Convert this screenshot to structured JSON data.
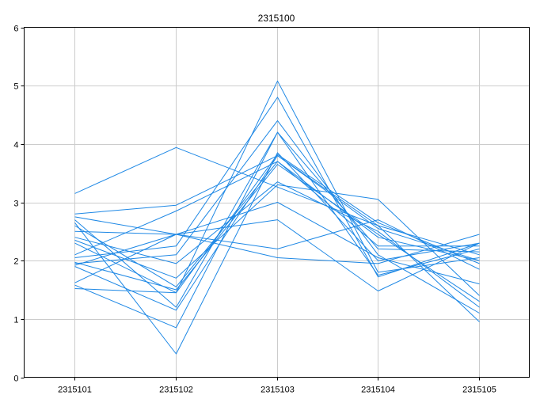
{
  "chart_data": {
    "type": "line",
    "title": "2315100",
    "xlabel": "",
    "ylabel": "",
    "categories": [
      "2315101",
      "2315102",
      "2315103",
      "2315104",
      "2315105"
    ],
    "ylim": [
      0,
      6
    ],
    "yticks": [
      "0",
      "1",
      "2",
      "3",
      "4",
      "5",
      "6"
    ],
    "grid": true,
    "legend": "none",
    "series_color": "#1e88e5",
    "grid_color": "#cccccc",
    "series": [
      {
        "values": [
          3.15,
          3.94,
          3.26,
          2.6,
          2.1
        ]
      },
      {
        "values": [
          2.8,
          2.95,
          3.8,
          2.55,
          2.0
        ]
      },
      {
        "values": [
          2.75,
          2.45,
          2.2,
          2.7,
          1.85
        ]
      },
      {
        "values": [
          2.7,
          1.2,
          4.2,
          1.75,
          2.2
        ]
      },
      {
        "values": [
          2.65,
          0.4,
          3.85,
          2.0,
          2.3
        ]
      },
      {
        "values": [
          2.6,
          1.55,
          3.7,
          2.25,
          2.25
        ]
      },
      {
        "values": [
          2.5,
          2.45,
          2.05,
          1.95,
          2.45
        ]
      },
      {
        "values": [
          2.4,
          1.95,
          3.35,
          2.5,
          1.2
        ]
      },
      {
        "values": [
          2.35,
          1.7,
          3.3,
          3.05,
          1.4
        ]
      },
      {
        "values": [
          2.3,
          1.45,
          5.08,
          1.8,
          2.05
        ]
      },
      {
        "values": [
          2.1,
          2.85,
          3.7,
          2.4,
          2.0
        ]
      },
      {
        "values": [
          2.05,
          2.25,
          4.8,
          1.72,
          2.3
        ]
      },
      {
        "values": [
          1.97,
          1.5,
          3.65,
          2.45,
          1.3
        ]
      },
      {
        "values": [
          1.95,
          2.1,
          4.4,
          2.1,
          1.1
        ]
      },
      {
        "values": [
          1.92,
          2.45,
          3.0,
          2.05,
          1.6
        ]
      },
      {
        "values": [
          1.9,
          1.15,
          3.8,
          2.6,
          0.95
        ]
      },
      {
        "values": [
          1.62,
          2.45,
          2.7,
          1.48,
          2.3
        ]
      },
      {
        "values": [
          1.58,
          0.85,
          4.2,
          2.2,
          2.15
        ]
      },
      {
        "values": [
          1.52,
          1.45,
          3.82,
          2.65,
          1.95
        ]
      }
    ]
  }
}
